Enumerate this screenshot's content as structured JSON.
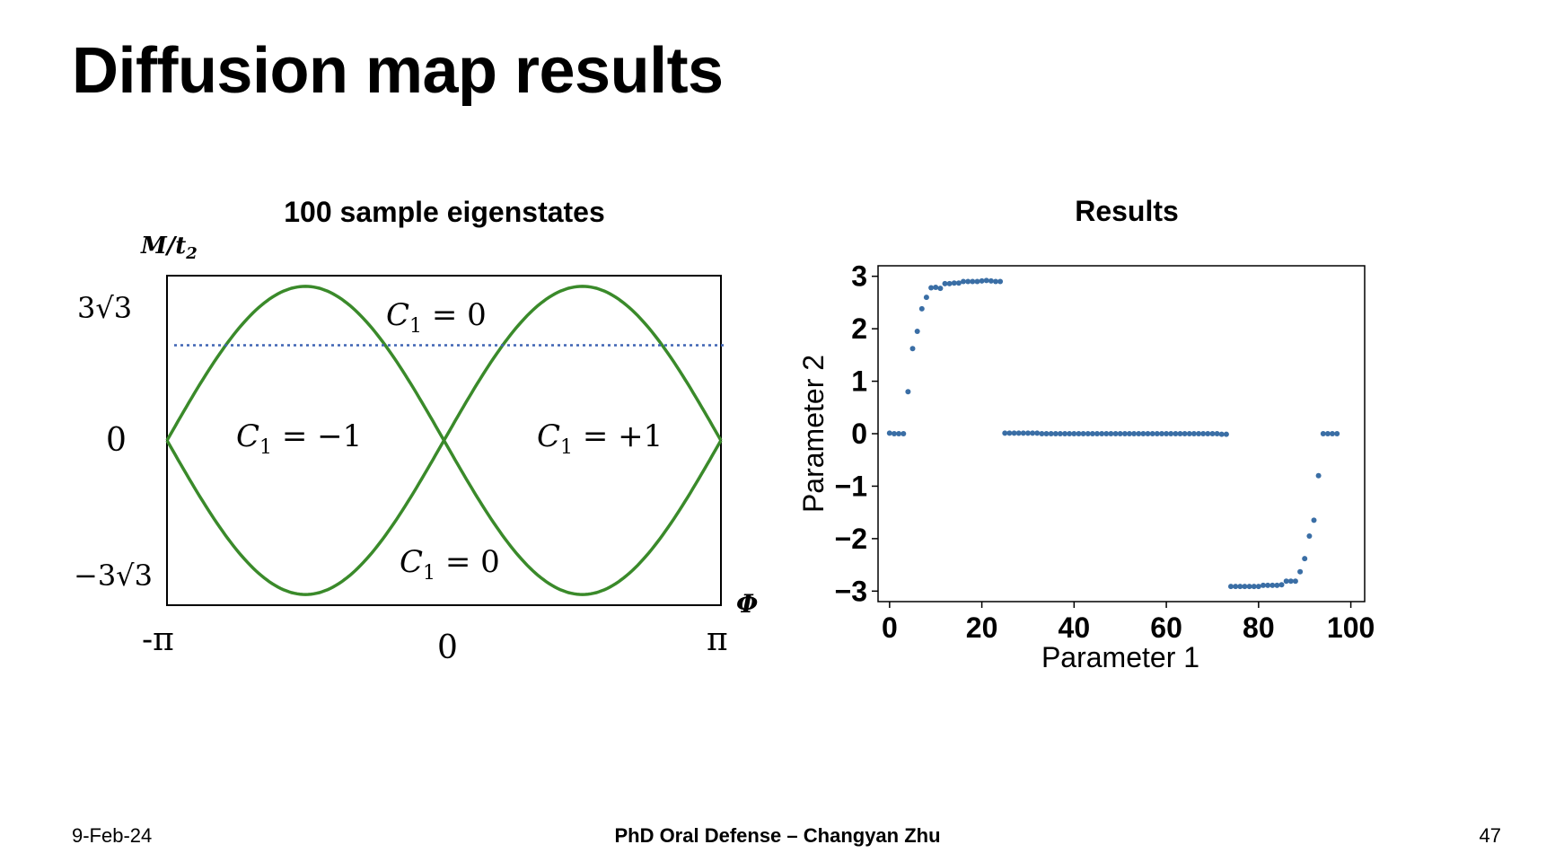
{
  "slide": {
    "title": "Diffusion map results",
    "footer_left": "9-Feb-24",
    "footer_center": "PhD Oral Defense – Changyan Zhu",
    "footer_right": "47"
  },
  "chart_data": [
    {
      "type": "line",
      "title": "100 sample eigenstates",
      "ylabel": "M/t2",
      "xlabel": "Φ",
      "x_ticks": [
        "-π",
        "0",
        "π"
      ],
      "y_ticks": [
        "3√3",
        "0",
        "−3√3"
      ],
      "xlim": [
        -3.1416,
        3.1416
      ],
      "ylim": [
        -5.196,
        5.196
      ],
      "series": [
        {
          "function": "3√3·sin(Φ)",
          "color": "#2e7d1f"
        },
        {
          "function": "−3√3·sin(Φ)",
          "color": "#2e7d1f"
        }
      ],
      "reference_line": {
        "y": 3.0,
        "style": "dotted",
        "color": "#3f63b4"
      },
      "annotations": [
        "C1 = 0",
        "C1 = −1",
        "C1 = +1",
        "C1 = 0"
      ]
    },
    {
      "type": "scatter",
      "title": "Results",
      "xlabel": "Parameter 1",
      "ylabel": "Parameter 2",
      "xlim": [
        -2.5,
        103
      ],
      "ylim": [
        -3.2,
        3.2
      ],
      "x_ticks": [
        0,
        20,
        40,
        60,
        80,
        100
      ],
      "y_ticks": [
        3,
        2,
        1,
        0,
        -1,
        -2,
        -3
      ],
      "color": "#3a6ea5",
      "points": [
        [
          0,
          0.01
        ],
        [
          1,
          0
        ],
        [
          2,
          0
        ],
        [
          3,
          0
        ],
        [
          4,
          0.8
        ],
        [
          5,
          1.62
        ],
        [
          6,
          1.95
        ],
        [
          7,
          2.38
        ],
        [
          8,
          2.6
        ],
        [
          9,
          2.78
        ],
        [
          10,
          2.79
        ],
        [
          11,
          2.77
        ],
        [
          12,
          2.86
        ],
        [
          13,
          2.86
        ],
        [
          14,
          2.87
        ],
        [
          15,
          2.87
        ],
        [
          16,
          2.9
        ],
        [
          17,
          2.9
        ],
        [
          18,
          2.9
        ],
        [
          19,
          2.9
        ],
        [
          20,
          2.91
        ],
        [
          21,
          2.92
        ],
        [
          22,
          2.91
        ],
        [
          23,
          2.9
        ],
        [
          24,
          2.9
        ],
        [
          25,
          0.01
        ],
        [
          26,
          0.01
        ],
        [
          27,
          0.01
        ],
        [
          28,
          0.01
        ],
        [
          29,
          0.01
        ],
        [
          30,
          0.01
        ],
        [
          31,
          0.01
        ],
        [
          32,
          0.01
        ],
        [
          33,
          0
        ],
        [
          34,
          0
        ],
        [
          35,
          0
        ],
        [
          36,
          0
        ],
        [
          37,
          0
        ],
        [
          38,
          0
        ],
        [
          39,
          0
        ],
        [
          40,
          0
        ],
        [
          41,
          0
        ],
        [
          42,
          0
        ],
        [
          43,
          0
        ],
        [
          44,
          0
        ],
        [
          45,
          0
        ],
        [
          46,
          0
        ],
        [
          47,
          0
        ],
        [
          48,
          0
        ],
        [
          49,
          0
        ],
        [
          50,
          0
        ],
        [
          51,
          0
        ],
        [
          52,
          0
        ],
        [
          53,
          0
        ],
        [
          54,
          0
        ],
        [
          55,
          0
        ],
        [
          56,
          0
        ],
        [
          57,
          0
        ],
        [
          58,
          0
        ],
        [
          59,
          0
        ],
        [
          60,
          0
        ],
        [
          61,
          0
        ],
        [
          62,
          0
        ],
        [
          63,
          0
        ],
        [
          64,
          0
        ],
        [
          65,
          0
        ],
        [
          66,
          0
        ],
        [
          67,
          0
        ],
        [
          68,
          0
        ],
        [
          69,
          0
        ],
        [
          70,
          0
        ],
        [
          71,
          0
        ],
        [
          72,
          -0.01
        ],
        [
          73,
          -0.01
        ],
        [
          74,
          -2.91
        ],
        [
          75,
          -2.91
        ],
        [
          76,
          -2.91
        ],
        [
          77,
          -2.91
        ],
        [
          78,
          -2.91
        ],
        [
          79,
          -2.91
        ],
        [
          80,
          -2.91
        ],
        [
          81,
          -2.89
        ],
        [
          82,
          -2.89
        ],
        [
          83,
          -2.89
        ],
        [
          84,
          -2.89
        ],
        [
          85,
          -2.88
        ],
        [
          86,
          -2.81
        ],
        [
          87,
          -2.81
        ],
        [
          88,
          -2.81
        ],
        [
          89,
          -2.63
        ],
        [
          90,
          -2.38
        ],
        [
          91,
          -1.95
        ],
        [
          92,
          -1.65
        ],
        [
          93,
          -0.8
        ],
        [
          94,
          0
        ],
        [
          95,
          0
        ],
        [
          96,
          0
        ],
        [
          97,
          0
        ]
      ]
    }
  ]
}
